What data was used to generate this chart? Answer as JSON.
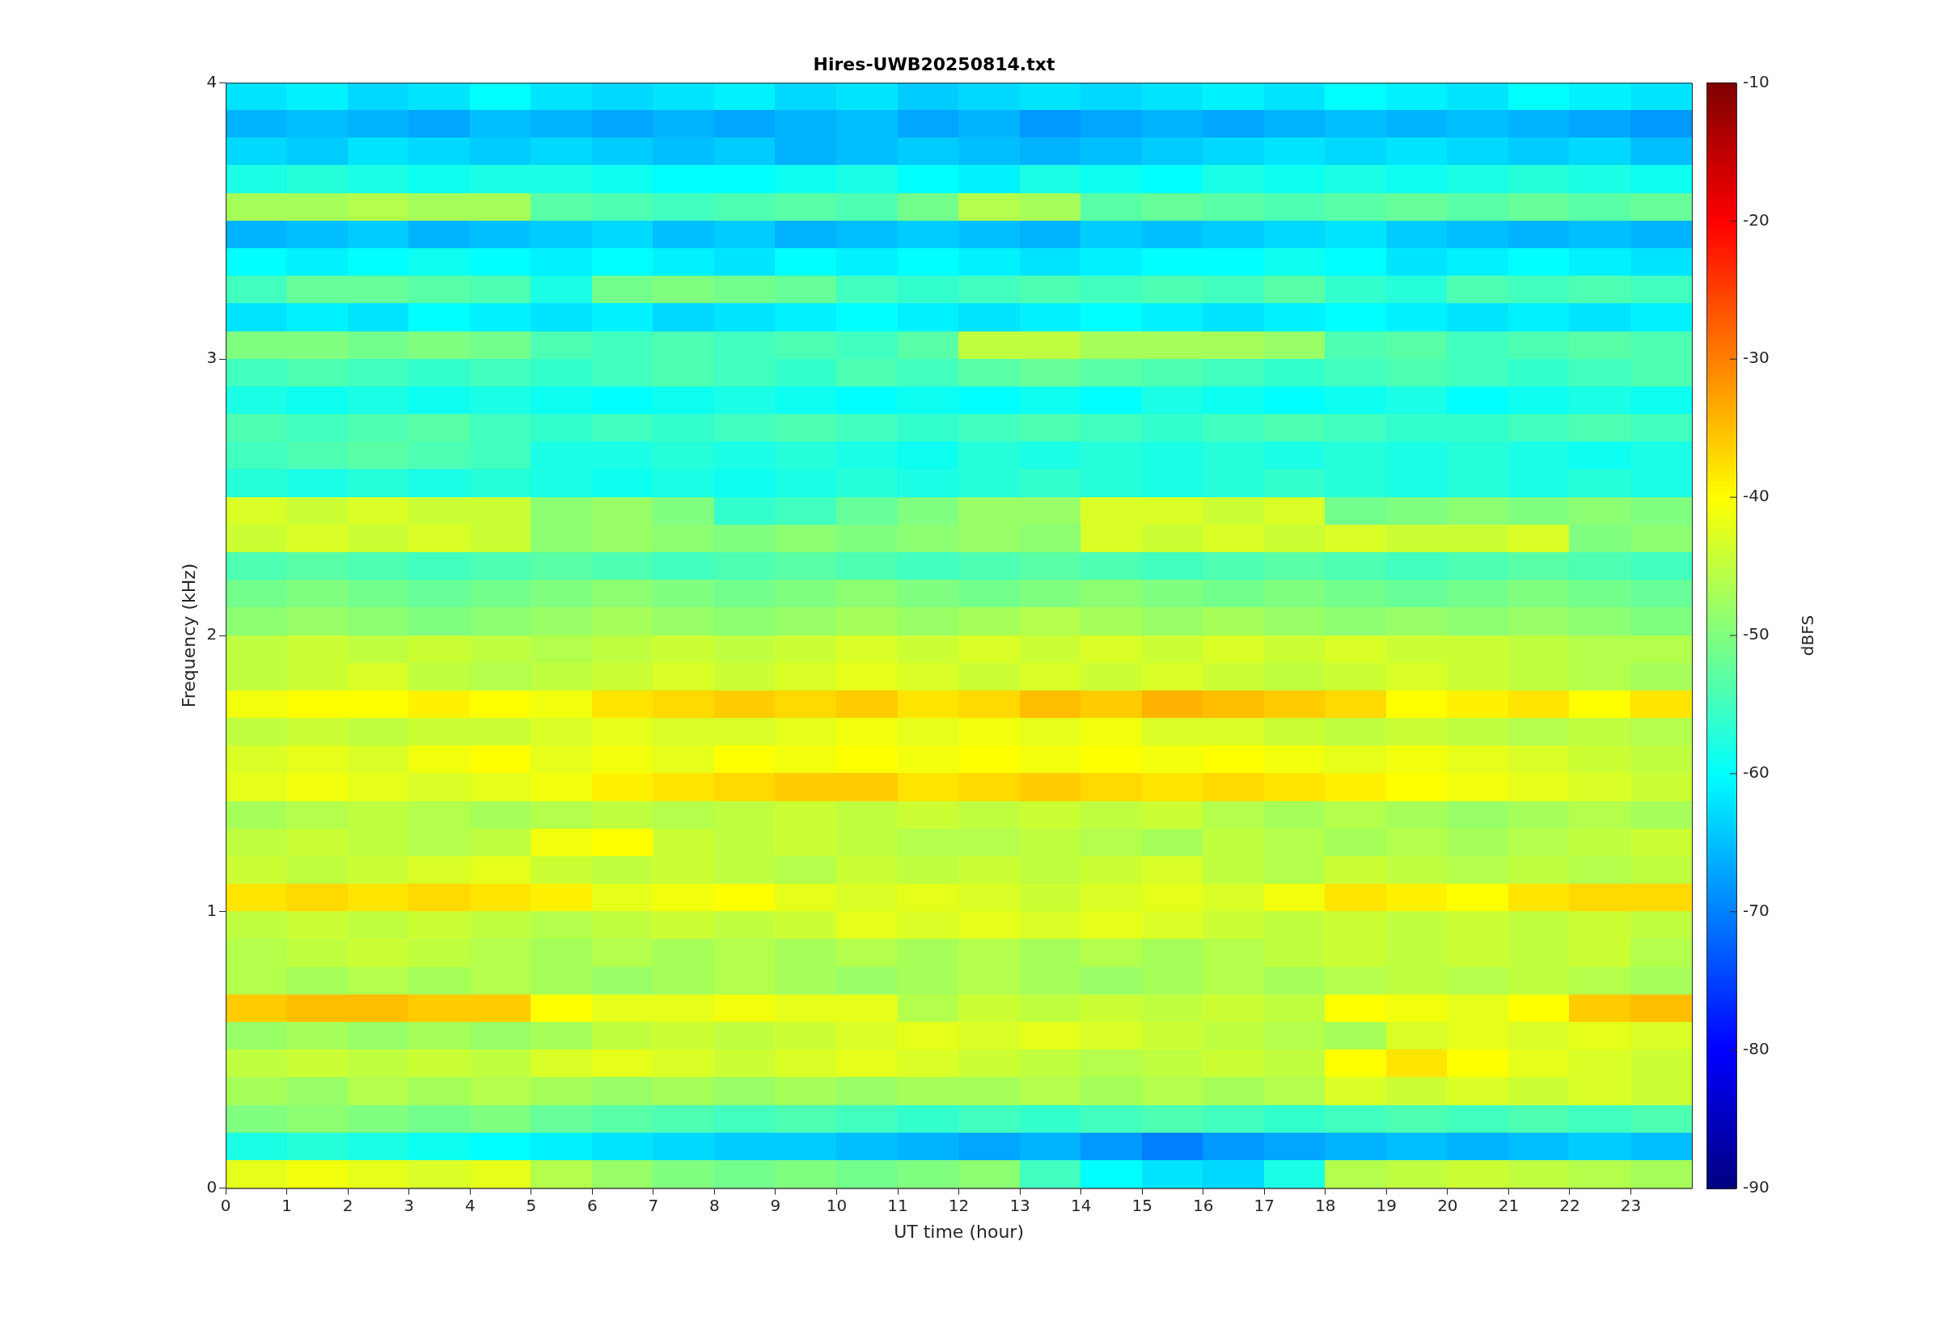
{
  "chart_data": {
    "type": "heatmap",
    "title": "Hires-UWB20250814.txt",
    "xlabel": "UT time (hour)",
    "ylabel": "Frequency (kHz)",
    "clabel": "dBFS",
    "xlim": [
      0,
      24
    ],
    "xticks": [
      0,
      1,
      2,
      3,
      4,
      5,
      6,
      7,
      8,
      9,
      10,
      11,
      12,
      13,
      14,
      15,
      16,
      17,
      18,
      19,
      20,
      21,
      22,
      23
    ],
    "ylim": [
      0,
      4
    ],
    "yticks": [
      0,
      1,
      2,
      3,
      4
    ],
    "clim": [
      -90,
      -10
    ],
    "cticks": [
      -90,
      -80,
      -70,
      -60,
      -50,
      -40,
      -30,
      -20,
      -10
    ],
    "grid": false,
    "cells": [
      [
        -62,
        -61,
        -63,
        -62,
        -60,
        -62,
        -63,
        -62,
        -61,
        -63,
        -62,
        -64,
        -63,
        -62,
        -63,
        -62,
        -61,
        -62,
        -60,
        -61,
        -62,
        -60,
        -61,
        -62
      ],
      [
        -66,
        -65,
        -66,
        -67,
        -65,
        -66,
        -67,
        -66,
        -67,
        -66,
        -65,
        -67,
        -66,
        -68,
        -67,
        -66,
        -67,
        -66,
        -65,
        -66,
        -65,
        -66,
        -67,
        -68
      ],
      [
        -63,
        -64,
        -62,
        -63,
        -64,
        -63,
        -64,
        -65,
        -64,
        -66,
        -65,
        -64,
        -65,
        -66,
        -65,
        -64,
        -63,
        -62,
        -63,
        -62,
        -63,
        -64,
        -63,
        -65
      ],
      [
        -58,
        -57,
        -58,
        -59,
        -58,
        -58,
        -59,
        -60,
        -60,
        -59,
        -58,
        -60,
        -61,
        -58,
        -59,
        -60,
        -58,
        -59,
        -58,
        -59,
        -58,
        -57,
        -58,
        -59
      ],
      [
        -47,
        -47,
        -46,
        -47,
        -47,
        -53,
        -54,
        -55,
        -54,
        -53,
        -54,
        -51,
        -46,
        -47,
        -53,
        -52,
        -53,
        -54,
        -53,
        -52,
        -53,
        -52,
        -53,
        -52
      ],
      [
        -66,
        -65,
        -64,
        -66,
        -65,
        -64,
        -63,
        -65,
        -64,
        -66,
        -65,
        -64,
        -65,
        -66,
        -64,
        -65,
        -64,
        -63,
        -62,
        -64,
        -65,
        -66,
        -65,
        -66
      ],
      [
        -60,
        -61,
        -60,
        -59,
        -60,
        -61,
        -60,
        -61,
        -62,
        -60,
        -61,
        -60,
        -61,
        -62,
        -61,
        -60,
        -60,
        -59,
        -60,
        -62,
        -61,
        -60,
        -61,
        -62
      ],
      [
        -55,
        -52,
        -52,
        -53,
        -54,
        -58,
        -51,
        -50,
        -51,
        -52,
        -55,
        -56,
        -55,
        -54,
        -55,
        -54,
        -55,
        -53,
        -56,
        -57,
        -54,
        -55,
        -54,
        -55
      ],
      [
        -62,
        -61,
        -62,
        -60,
        -61,
        -62,
        -61,
        -63,
        -62,
        -61,
        -60,
        -61,
        -62,
        -61,
        -60,
        -61,
        -62,
        -61,
        -60,
        -61,
        -62,
        -61,
        -62,
        -61
      ],
      [
        -50,
        -50,
        -51,
        -50,
        -51,
        -54,
        -55,
        -54,
        -55,
        -54,
        -55,
        -53,
        -45,
        -45,
        -47,
        -47,
        -47,
        -48,
        -54,
        -53,
        -55,
        -54,
        -53,
        -54
      ],
      [
        -55,
        -54,
        -55,
        -56,
        -55,
        -56,
        -55,
        -54,
        -55,
        -56,
        -54,
        -55,
        -53,
        -52,
        -53,
        -54,
        -55,
        -56,
        -55,
        -54,
        -55,
        -56,
        -55,
        -54
      ],
      [
        -58,
        -59,
        -58,
        -59,
        -58,
        -59,
        -60,
        -59,
        -58,
        -59,
        -60,
        -59,
        -60,
        -59,
        -60,
        -58,
        -59,
        -60,
        -59,
        -58,
        -60,
        -59,
        -58,
        -59
      ],
      [
        -54,
        -55,
        -54,
        -53,
        -55,
        -56,
        -55,
        -56,
        -55,
        -54,
        -55,
        -56,
        -55,
        -54,
        -55,
        -56,
        -55,
        -54,
        -55,
        -56,
        -56,
        -55,
        -54,
        -55
      ],
      [
        -55,
        -54,
        -53,
        -54,
        -55,
        -58,
        -58,
        -57,
        -58,
        -57,
        -58,
        -59,
        -57,
        -58,
        -57,
        -58,
        -57,
        -58,
        -57,
        -58,
        -57,
        -58,
        -59,
        -58
      ],
      [
        -57,
        -58,
        -57,
        -58,
        -57,
        -58,
        -59,
        -58,
        -59,
        -58,
        -57,
        -58,
        -57,
        -56,
        -57,
        -58,
        -57,
        -56,
        -57,
        -58,
        -57,
        -58,
        -57,
        -58
      ],
      [
        -43,
        -44,
        -43,
        -44,
        -44,
        -49,
        -48,
        -50,
        -56,
        -55,
        -52,
        -50,
        -48,
        -48,
        -43,
        -43,
        -44,
        -43,
        -51,
        -50,
        -49,
        -50,
        -49,
        -50
      ],
      [
        -44,
        -43,
        -44,
        -43,
        -44,
        -49,
        -48,
        -49,
        -50,
        -49,
        -50,
        -49,
        -48,
        -49,
        -43,
        -44,
        -43,
        -44,
        -43,
        -44,
        -44,
        -43,
        -50,
        -49
      ],
      [
        -54,
        -53,
        -54,
        -55,
        -54,
        -53,
        -54,
        -55,
        -54,
        -53,
        -54,
        -55,
        -54,
        -53,
        -54,
        -55,
        -54,
        -53,
        -54,
        -55,
        -54,
        -53,
        -54,
        -55
      ],
      [
        -51,
        -50,
        -51,
        -52,
        -51,
        -50,
        -49,
        -50,
        -51,
        -50,
        -49,
        -50,
        -51,
        -50,
        -49,
        -50,
        -51,
        -50,
        -51,
        -52,
        -51,
        -50,
        -51,
        -52
      ],
      [
        -49,
        -48,
        -49,
        -50,
        -49,
        -48,
        -47,
        -48,
        -49,
        -48,
        -47,
        -48,
        -47,
        -46,
        -47,
        -48,
        -47,
        -48,
        -49,
        -48,
        -49,
        -48,
        -49,
        -50
      ],
      [
        -45,
        -44,
        -45,
        -44,
        -45,
        -46,
        -45,
        -44,
        -45,
        -44,
        -43,
        -44,
        -43,
        -44,
        -43,
        -44,
        -43,
        -44,
        -43,
        -44,
        -44,
        -45,
        -46,
        -46
      ],
      [
        -45,
        -44,
        -43,
        -45,
        -46,
        -45,
        -44,
        -43,
        -44,
        -43,
        -42,
        -43,
        -44,
        -43,
        -44,
        -43,
        -44,
        -45,
        -44,
        -43,
        -44,
        -45,
        -46,
        -47
      ],
      [
        -41,
        -40,
        -40,
        -39,
        -40,
        -41,
        -38,
        -37,
        -36,
        -37,
        -36,
        -38,
        -37,
        -35,
        -36,
        -34,
        -35,
        -36,
        -37,
        -40,
        -39,
        -38,
        -40,
        -38
      ],
      [
        -45,
        -44,
        -45,
        -44,
        -44,
        -43,
        -42,
        -43,
        -43,
        -42,
        -41,
        -42,
        -41,
        -42,
        -41,
        -43,
        -43,
        -44,
        -45,
        -44,
        -45,
        -46,
        -45,
        -46
      ],
      [
        -43,
        -42,
        -43,
        -41,
        -40,
        -42,
        -41,
        -42,
        -40,
        -41,
        -40,
        -41,
        -40,
        -41,
        -40,
        -41,
        -40,
        -41,
        -42,
        -41,
        -42,
        -43,
        -44,
        -45
      ],
      [
        -42,
        -41,
        -42,
        -43,
        -42,
        -41,
        -39,
        -38,
        -37,
        -36,
        -36,
        -38,
        -37,
        -36,
        -37,
        -38,
        -37,
        -38,
        -39,
        -40,
        -41,
        -42,
        -43,
        -44
      ],
      [
        -47,
        -46,
        -45,
        -46,
        -47,
        -46,
        -45,
        -46,
        -45,
        -44,
        -45,
        -44,
        -45,
        -44,
        -45,
        -44,
        -46,
        -47,
        -46,
        -47,
        -48,
        -47,
        -46,
        -47
      ],
      [
        -45,
        -44,
        -45,
        -46,
        -45,
        -41,
        -40,
        -44,
        -45,
        -44,
        -45,
        -46,
        -46,
        -45,
        -46,
        -47,
        -45,
        -46,
        -47,
        -46,
        -47,
        -46,
        -45,
        -44
      ],
      [
        -44,
        -45,
        -44,
        -43,
        -42,
        -44,
        -45,
        -44,
        -45,
        -46,
        -44,
        -45,
        -44,
        -45,
        -44,
        -43,
        -45,
        -46,
        -44,
        -45,
        -46,
        -45,
        -46,
        -45
      ],
      [
        -38,
        -37,
        -38,
        -37,
        -38,
        -39,
        -42,
        -41,
        -40,
        -42,
        -43,
        -42,
        -43,
        -44,
        -43,
        -42,
        -43,
        -41,
        -38,
        -39,
        -40,
        -38,
        -37,
        -37
      ],
      [
        -45,
        -44,
        -45,
        -44,
        -45,
        -46,
        -45,
        -44,
        -45,
        -44,
        -42,
        -43,
        -42,
        -43,
        -42,
        -43,
        -44,
        -45,
        -44,
        -45,
        -44,
        -45,
        -44,
        -45
      ],
      [
        -46,
        -45,
        -44,
        -45,
        -46,
        -47,
        -46,
        -47,
        -46,
        -47,
        -46,
        -47,
        -46,
        -47,
        -46,
        -47,
        -46,
        -45,
        -44,
        -45,
        -44,
        -45,
        -44,
        -46
      ],
      [
        -46,
        -47,
        -46,
        -47,
        -46,
        -47,
        -48,
        -47,
        -46,
        -47,
        -48,
        -47,
        -46,
        -47,
        -48,
        -47,
        -46,
        -47,
        -46,
        -45,
        -46,
        -45,
        -46,
        -47
      ],
      [
        -36,
        -35,
        -35,
        -36,
        -36,
        -40,
        -42,
        -42,
        -41,
        -42,
        -42,
        -46,
        -44,
        -45,
        -44,
        -45,
        -44,
        -45,
        -40,
        -41,
        -42,
        -40,
        -36,
        -35
      ],
      [
        -48,
        -47,
        -48,
        -47,
        -48,
        -47,
        -45,
        -44,
        -45,
        -44,
        -43,
        -42,
        -43,
        -42,
        -43,
        -44,
        -45,
        -46,
        -47,
        -43,
        -42,
        -43,
        -42,
        -43
      ],
      [
        -45,
        -44,
        -45,
        -44,
        -45,
        -43,
        -42,
        -43,
        -44,
        -43,
        -42,
        -43,
        -44,
        -45,
        -46,
        -45,
        -44,
        -45,
        -40,
        -38,
        -40,
        -42,
        -43,
        -44
      ],
      [
        -47,
        -48,
        -46,
        -47,
        -46,
        -47,
        -48,
        -47,
        -48,
        -47,
        -48,
        -47,
        -47,
        -46,
        -47,
        -46,
        -47,
        -46,
        -43,
        -44,
        -43,
        -44,
        -43,
        -44
      ],
      [
        -50,
        -49,
        -50,
        -51,
        -50,
        -52,
        -53,
        -54,
        -55,
        -54,
        -55,
        -56,
        -55,
        -56,
        -55,
        -54,
        -55,
        -56,
        -55,
        -54,
        -55,
        -54,
        -55,
        -54
      ],
      [
        -58,
        -57,
        -58,
        -59,
        -60,
        -61,
        -62,
        -63,
        -64,
        -64,
        -65,
        -66,
        -67,
        -66,
        -68,
        -70,
        -68,
        -67,
        -66,
        -65,
        -66,
        -65,
        -64,
        -65
      ],
      [
        -42,
        -41,
        -42,
        -43,
        -42,
        -46,
        -48,
        -50,
        -51,
        -50,
        -51,
        -50,
        -49,
        -55,
        -60,
        -62,
        -63,
        -58,
        -46,
        -45,
        -44,
        -45,
        -46,
        -47
      ]
    ]
  }
}
